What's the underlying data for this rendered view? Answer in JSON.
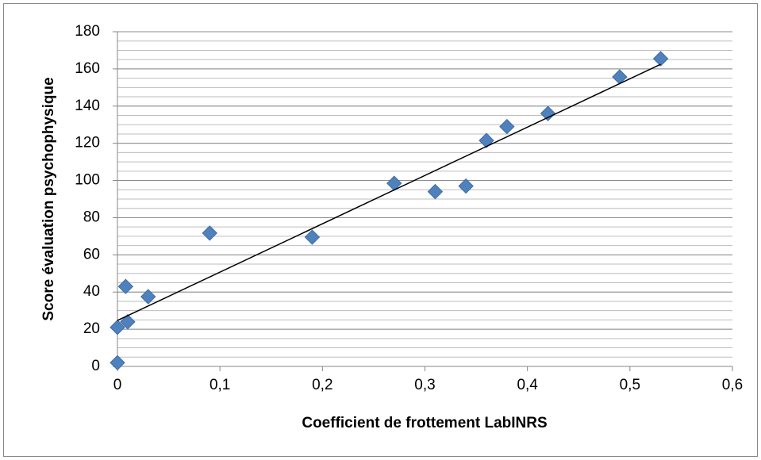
{
  "chart_data": {
    "type": "scatter",
    "x_label": "Coefficient de frottement LabINRS",
    "y_label": "Score évaluation psychophysique",
    "series": [
      {
        "color": "#4f81bd",
        "x": [
          0,
          0,
          0.008,
          0.01,
          0.03,
          0.09,
          0.19,
          0.27,
          0.31,
          0.34,
          0.36,
          0.38,
          0.42,
          0.49,
          0.53
        ],
        "values": [
          2,
          21,
          43,
          24,
          37.5,
          71.7,
          69.5,
          98.5,
          94,
          97,
          121.5,
          129,
          136,
          155.7,
          165.5
        ]
      }
    ],
    "trendline": {
      "x": [
        0,
        0.53
      ],
      "y": [
        24.7,
        162.5
      ],
      "color": "#000000"
    },
    "xlim": [
      0,
      0.6
    ],
    "xticks": [
      0,
      {
        "value": 0.1,
        "label": "0,1"
      },
      {
        "value": 0.2,
        "label": "0,2"
      },
      {
        "value": 0.3,
        "label": "0,3"
      },
      {
        "value": 0.4,
        "label": "0,4"
      },
      {
        "value": 0.5,
        "label": "0,5"
      },
      {
        "value": 0.6,
        "label": "0,6"
      }
    ],
    "ylim": [
      0,
      180
    ],
    "yticks": [
      0,
      20,
      40,
      60,
      80,
      100,
      120,
      140,
      160,
      180
    ],
    "y_minor_step": 5,
    "grid": true
  }
}
